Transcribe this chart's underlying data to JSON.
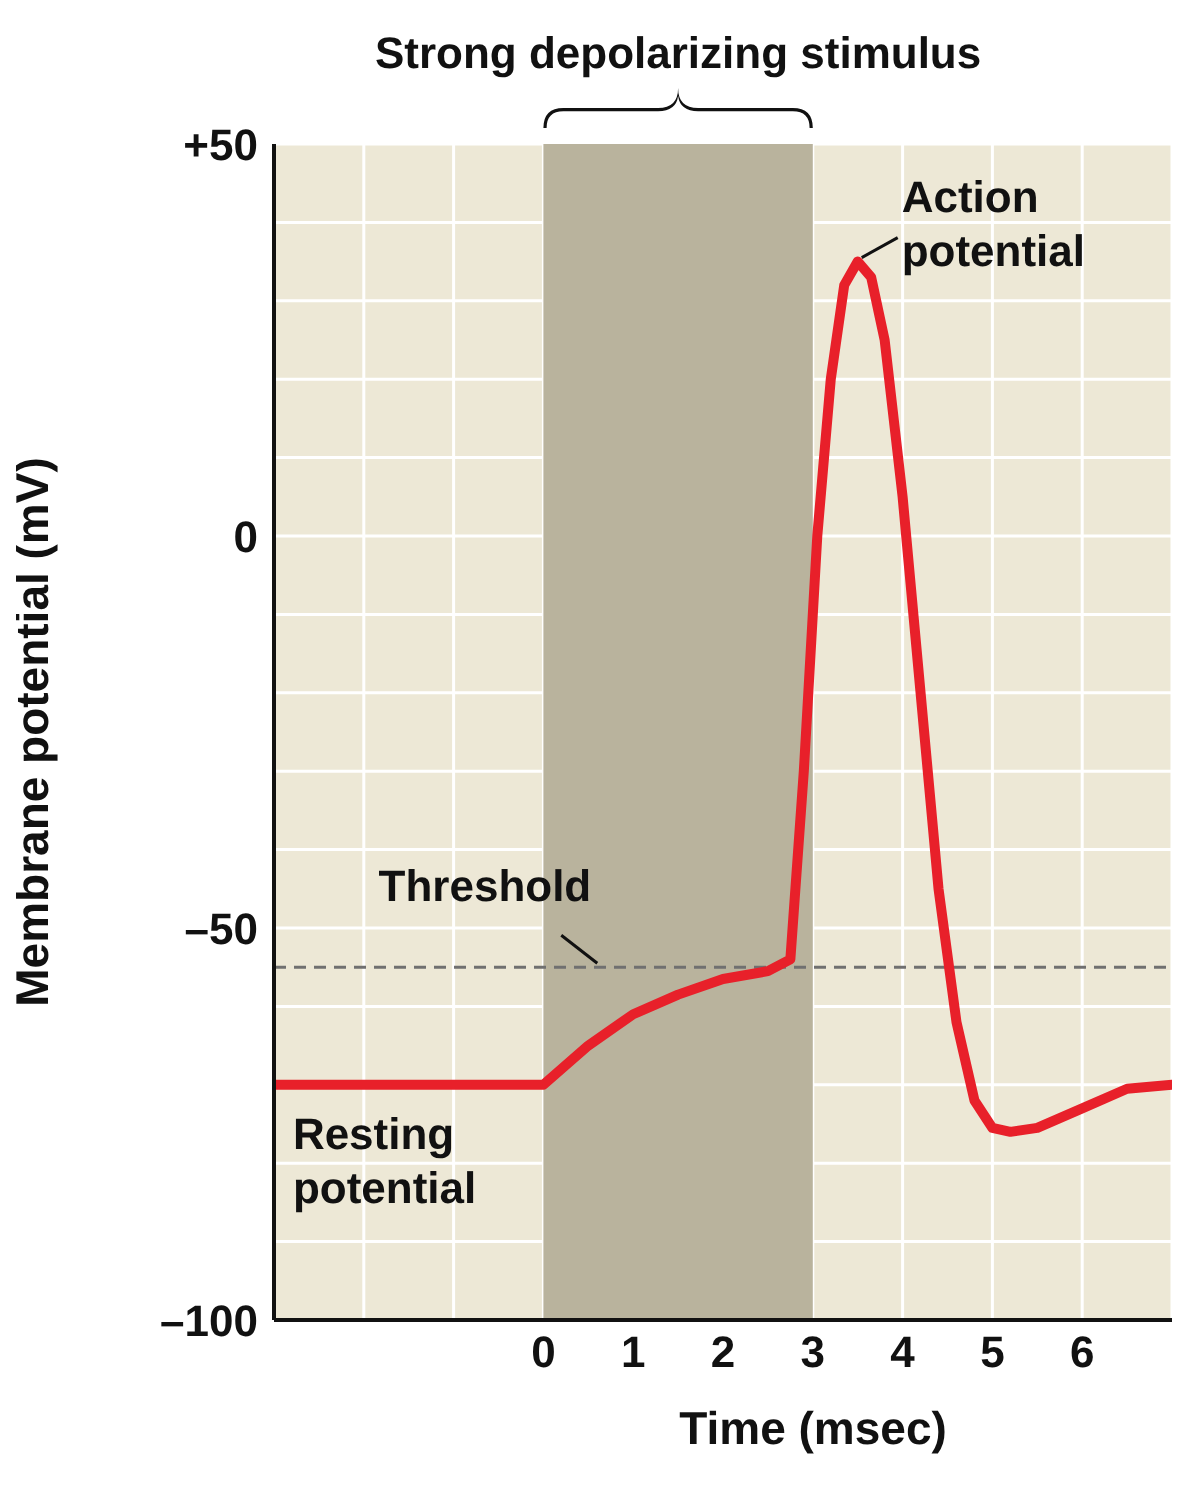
{
  "chart_data": {
    "type": "line",
    "xlabel": "Time (msec)",
    "ylabel": "Membrane potential (mV)",
    "x": [
      -3,
      0,
      0.5,
      1,
      1.5,
      2,
      2.5,
      2.75,
      2.9,
      3.05,
      3.2,
      3.35,
      3.5,
      3.65,
      3.8,
      4.0,
      4.2,
      4.4,
      4.6,
      4.8,
      5.0,
      5.2,
      5.5,
      6,
      6.5,
      7
    ],
    "series": [
      {
        "color": "#e8202a",
        "values": [
          -70,
          -70,
          -65,
          -61,
          -58.5,
          -56.5,
          -55.5,
          -54,
          -30,
          0,
          20,
          32,
          35,
          33,
          25,
          5,
          -20,
          -45,
          -62,
          -72,
          -75.5,
          -76,
          -75.5,
          -73,
          -70.5,
          -70
        ]
      }
    ],
    "xlim": [
      -3,
      7
    ],
    "xticks": [
      {
        "value": -3,
        "label": null
      },
      {
        "value": -2,
        "label": null
      },
      {
        "value": -1,
        "label": null
      },
      0,
      1,
      2,
      3,
      4,
      5,
      6,
      {
        "value": 7,
        "label": null
      }
    ],
    "ylim": [
      -100,
      50
    ],
    "yticks": [
      {
        "value": -100,
        "label": "–100"
      },
      {
        "value": -90,
        "label": null
      },
      {
        "value": -80,
        "label": null
      },
      {
        "value": -70,
        "label": null
      },
      {
        "value": -60,
        "label": null
      },
      {
        "value": -50,
        "label": "–50"
      },
      {
        "value": -40,
        "label": null
      },
      {
        "value": -30,
        "label": null
      },
      {
        "value": -20,
        "label": null
      },
      {
        "value": -10,
        "label": null
      },
      0,
      {
        "value": 10,
        "label": null
      },
      {
        "value": 20,
        "label": null
      },
      {
        "value": 30,
        "label": null
      },
      {
        "value": 40,
        "label": null
      },
      {
        "value": 50,
        "label": "+50"
      }
    ],
    "grid": true,
    "marker": "none",
    "line_style": "solid",
    "ref_lines": [
      {
        "axis": "y",
        "value": -55,
        "color": "#707070",
        "line_style": "dashed"
      }
    ],
    "bands": [
      {
        "axis": "x",
        "from": 0,
        "to": 3,
        "label": "Strong depolarizing stimulus",
        "color": "#b9b39d"
      }
    ],
    "annotations": [
      {
        "text": "Action potential",
        "x": 3.5,
        "y": 35
      },
      {
        "text": "Threshold",
        "x": 0.6,
        "y": -55
      },
      {
        "text": "Resting potential",
        "x": -2.5,
        "y": -70
      }
    ]
  }
}
